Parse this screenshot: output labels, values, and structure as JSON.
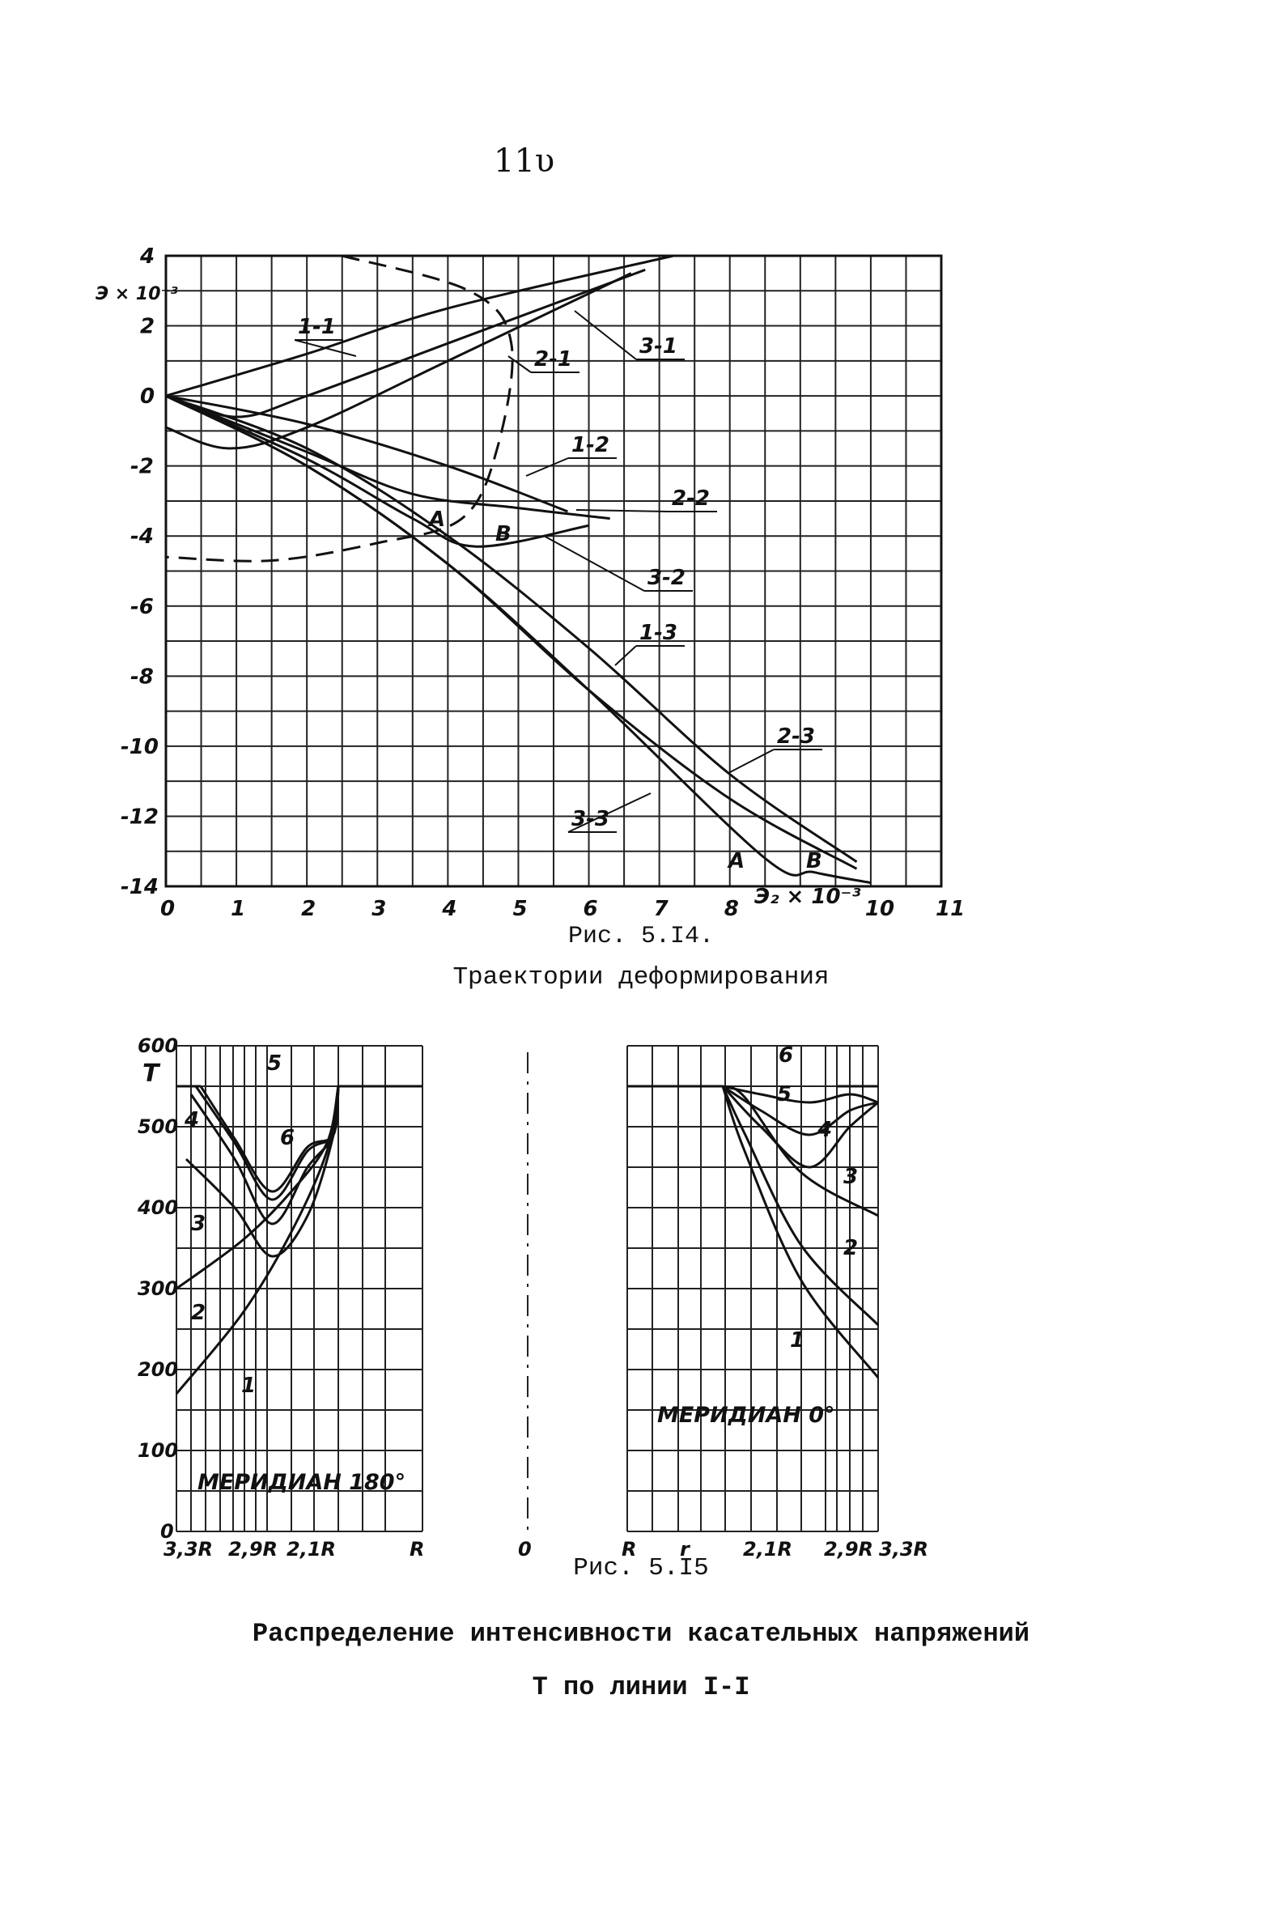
{
  "page_number": "11υ",
  "captions": {
    "fig14": "Рис. 5.I4.",
    "fig14_title": "Траектории деформирования",
    "fig15": "Рис. 5.I5",
    "fig15_title_line1": "Распределение интенсивности касательных напряжений",
    "fig15_title_line2": "T по линии I-I"
  },
  "chart_data": [
    {
      "type": "line",
      "title": "",
      "xlabel": "Э₂ × 10⁻³",
      "ylabel": "Э × 10⁻³",
      "xlim": [
        0,
        11
      ],
      "ylim": [
        -14,
        4
      ],
      "x_ticks": [
        "0",
        "1",
        "2",
        "3",
        "4",
        "5",
        "6",
        "7",
        "8",
        "",
        "10",
        "11"
      ],
      "y_ticks": [
        "4",
        "2",
        "0",
        "-2",
        "-4",
        "-6",
        "-8",
        "-10",
        "-12",
        "-14"
      ],
      "grid": true,
      "series": [
        {
          "name": "1-1",
          "x": [
            0,
            2,
            4,
            7.2
          ],
          "y": [
            0,
            1.2,
            2.5,
            4
          ]
        },
        {
          "name": "2-1",
          "x": [
            0,
            0.9,
            2,
            4,
            6.6
          ],
          "y": [
            -0.9,
            -1.5,
            -0.9,
            1,
            3.5
          ]
        },
        {
          "name": "3-1",
          "x": [
            0,
            1,
            2,
            4,
            6.8
          ],
          "y": [
            0,
            -0.6,
            0,
            1.5,
            3.6
          ]
        },
        {
          "name": "1-2",
          "x": [
            0,
            2,
            4,
            5.7
          ],
          "y": [
            0,
            -0.8,
            -2,
            -3.3
          ]
        },
        {
          "name": "2-2",
          "x": [
            0,
            2,
            3.5,
            5,
            6.3
          ],
          "y": [
            0,
            -1.6,
            -2.8,
            -3.2,
            -3.5
          ]
        },
        {
          "name": "3-2",
          "x": [
            0,
            2,
            3.5,
            4.4,
            6
          ],
          "y": [
            0,
            -1.8,
            -3.5,
            -4.3,
            -3.7
          ]
        },
        {
          "name": "1-3",
          "x": [
            0,
            2,
            4,
            6,
            8,
            9.8
          ],
          "y": [
            0,
            -1.5,
            -4,
            -7.2,
            -10.8,
            -13.3
          ]
        },
        {
          "name": "2-3",
          "x": [
            0,
            2,
            4,
            6,
            8,
            9.8
          ],
          "y": [
            0,
            -2,
            -4.8,
            -8.4,
            -11.5,
            -13.5
          ]
        },
        {
          "name": "3-3",
          "x": [
            0,
            2,
            4,
            6,
            8.5,
            9.2,
            10
          ],
          "y": [
            0,
            -2,
            -4.8,
            -8.4,
            -13.2,
            -13.6,
            -13.9
          ]
        }
      ],
      "dashed_path": {
        "x": [
          2.5,
          4.3,
          4.9,
          4.7,
          4.2,
          3,
          1.5,
          0
        ],
        "y": [
          4,
          3,
          1.5,
          -1.5,
          -3.5,
          -4.2,
          -4.7,
          -4.6
        ]
      },
      "annotations": [
        "A",
        "B",
        "A",
        "B"
      ]
    },
    {
      "type": "line",
      "title": "",
      "ylabel": "T",
      "ylim": [
        0,
        600
      ],
      "y_ticks": [
        "600",
        "500",
        "400",
        "300",
        "200",
        "100",
        "0"
      ],
      "x_tick_labels_left": [
        "3,3R",
        "2,9R",
        "2,1R",
        "R"
      ],
      "x_tick_labels_right": [
        "0",
        "R",
        "r",
        "2,1R",
        "2,9R",
        "3,3R"
      ],
      "panel_labels": [
        "МЕРИДИАН 180°",
        "МЕРИДИАН 0°"
      ],
      "grid": true,
      "series_left": [
        {
          "name": "1",
          "y_start": 170,
          "y_end": 470
        },
        {
          "name": "2",
          "y_start": 300,
          "y_end": 480
        },
        {
          "name": "3",
          "y_start": 460,
          "y_min": 340
        },
        {
          "name": "4",
          "y_start": 540,
          "y_min": 380
        },
        {
          "name": "5",
          "y_start": 550,
          "y_min": 410
        },
        {
          "name": "6",
          "y_start": 550,
          "y_min": 420
        }
      ],
      "series_right": [
        {
          "name": "1",
          "y_start": 550,
          "y_end": 190
        },
        {
          "name": "2",
          "y_start": 550,
          "y_end": 255
        },
        {
          "name": "3",
          "y_start": 550,
          "y_end": 390
        },
        {
          "name": "4",
          "y_start": 550,
          "y_min": 450
        },
        {
          "name": "5",
          "y_start": 550,
          "y_min": 490
        },
        {
          "name": "6",
          "y_start": 550,
          "y_min": 530
        }
      ],
      "plateau_value": 550
    }
  ]
}
